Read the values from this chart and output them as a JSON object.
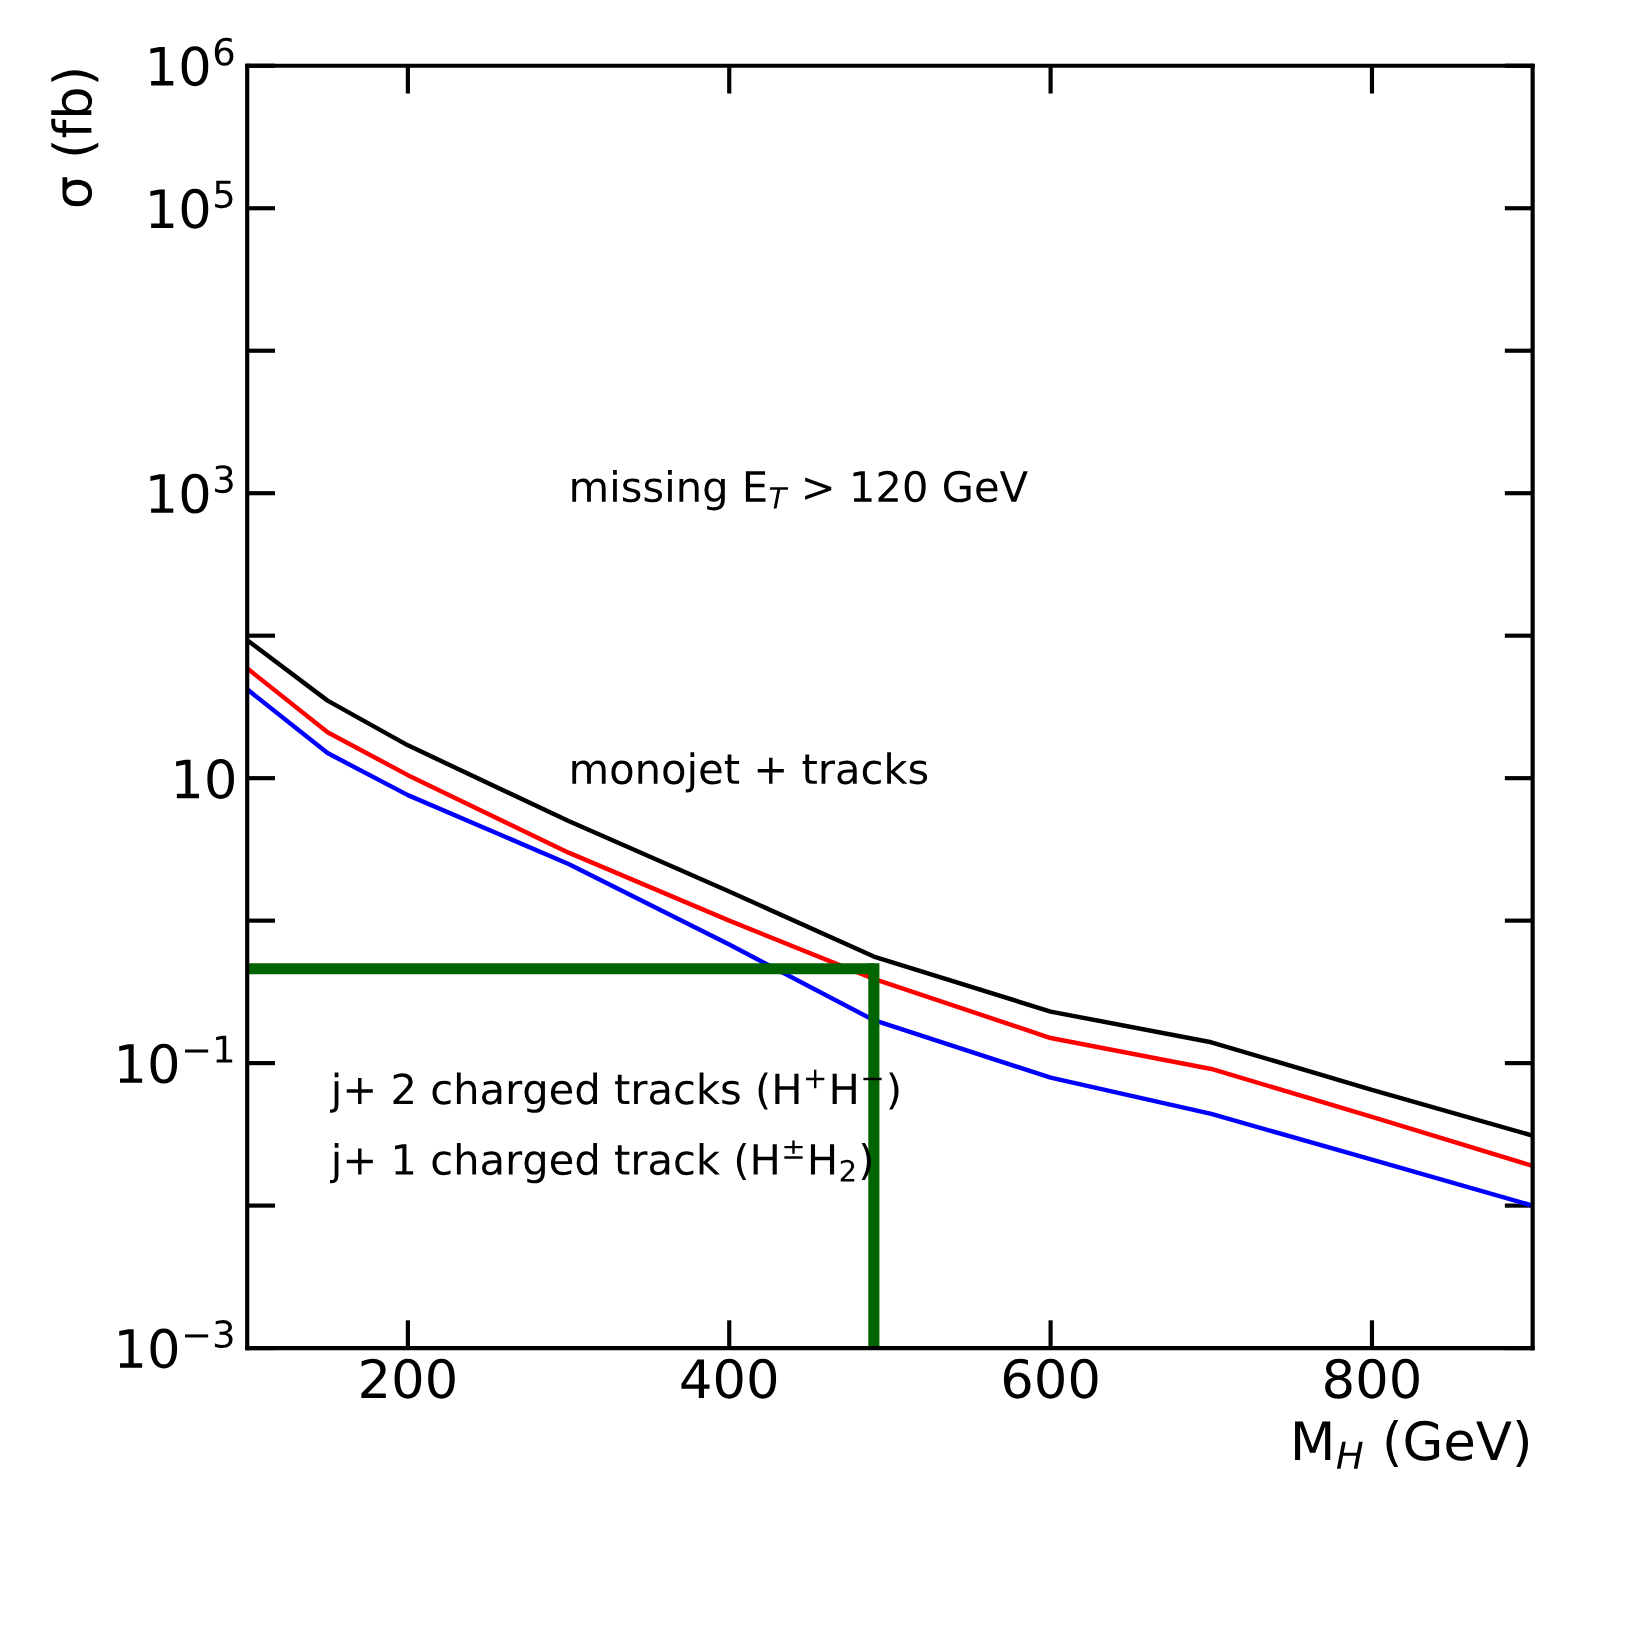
{
  "chart_data": {
    "type": "line",
    "xlabel": "M$_{H}$ (GeV)",
    "ylabel": "σ (fb)",
    "log": "y",
    "grid": false,
    "legend": false,
    "x": [
      100,
      150,
      200,
      300,
      400,
      490,
      600,
      700,
      800,
      900
    ],
    "series": [
      {
        "color": "#000000",
        "values": [
          93,
          35,
          17,
          5.0,
          1.6,
          0.56,
          0.23,
          0.14,
          0.065,
          0.031
        ]
      },
      {
        "color": "#ff0000",
        "values": [
          59,
          21,
          10.5,
          3.0,
          1.0,
          0.39,
          0.15,
          0.091,
          0.042,
          0.019
        ]
      },
      {
        "color": "#0000ff",
        "values": [
          42,
          15,
          7.6,
          2.5,
          0.68,
          0.2,
          0.079,
          0.044,
          0.021,
          0.01
        ]
      }
    ],
    "ref_lines": [
      {
        "axis": "y",
        "value": 0.46,
        "color": "#006400"
      },
      {
        "axis": "x",
        "value": 490,
        "color": "#006400"
      }
    ],
    "xlim": [
      100,
      900
    ],
    "xticks": [
      200,
      400,
      600,
      800
    ],
    "ylim": [
      0.001,
      1000000
    ],
    "yticks": [
      {
        "value": 1000000,
        "label": "10$^{6}$"
      },
      {
        "value": 100000,
        "label": "10$^{5}$"
      },
      {
        "value": 10000,
        "label": null
      },
      {
        "value": 1000,
        "label": "10$^{3}$"
      },
      {
        "value": 100,
        "label": null
      },
      {
        "value": 10,
        "label": "10"
      },
      {
        "value": 1,
        "label": null
      },
      {
        "value": 0.1,
        "label": "10$^{−1}$"
      },
      {
        "value": 0.01,
        "label": null
      },
      {
        "value": 0.001,
        "label": "10$^{−3}$"
      }
    ],
    "annotations": [
      "missing E$_{T}$ > 120 GeV",
      "monojet + tracks",
      "j+ 2 charged tracks (H$^{+}$H$^{−}$)",
      "j+ 1 charged track (H$^{±}$H$_{2}$)"
    ]
  }
}
